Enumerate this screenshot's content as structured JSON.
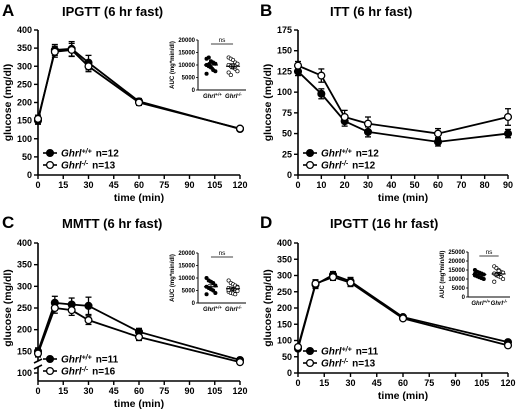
{
  "chart_data": [
    {
      "letter": "A",
      "type": "line",
      "title": "IPGTT (6 hr fast)",
      "xlabel": "time (min)",
      "ylabel": "glucose (mg/dl)",
      "x": [
        0,
        10,
        20,
        30,
        60,
        120
      ],
      "xticks": [
        0,
        15,
        30,
        45,
        60,
        75,
        90,
        105,
        120
      ],
      "xlim": [
        0,
        120
      ],
      "ylim": [
        0,
        400
      ],
      "yticks": [
        0,
        50,
        100,
        150,
        200,
        250,
        300,
        350,
        400
      ],
      "series": [
        {
          "name": "Ghrl+/+",
          "n": "n=12",
          "filled": true,
          "values": [
            150,
            345,
            348,
            310,
            203,
            127
          ],
          "err": [
            10,
            15,
            20,
            20,
            8,
            5
          ]
        },
        {
          "name": "Ghrl-/-",
          "n": "n=13",
          "filled": false,
          "values": [
            155,
            340,
            345,
            300,
            200,
            128
          ],
          "err": [
            10,
            15,
            18,
            15,
            8,
            5
          ]
        }
      ],
      "inset": {
        "ylabel": "AUC (mg*min/dl)",
        "yticks": [
          0,
          5000,
          10000,
          15000,
          20000
        ],
        "ylim": [
          0,
          20000
        ],
        "categories": [
          "Ghrl+/+",
          "Ghrl-/-"
        ],
        "means": [
          10000,
          9500
        ],
        "sem": [
          1000,
          1000
        ],
        "sig": "ns",
        "points": [
          [
            12500,
            13000,
            11500,
            11000,
            10500,
            10000,
            9500,
            9000,
            8000,
            7500,
            6500,
            10200
          ],
          [
            13000,
            12500,
            12000,
            11000,
            10500,
            10000,
            9500,
            9000,
            8500,
            7500,
            7000,
            6000,
            9800
          ]
        ]
      }
    },
    {
      "letter": "B",
      "type": "line",
      "title": "ITT  (6 hr fast)",
      "xlabel": "time (min)",
      "ylabel": "glucose (mg/dl)",
      "x": [
        0,
        10,
        20,
        30,
        60,
        90
      ],
      "xticks": [
        0,
        10,
        20,
        30,
        40,
        50,
        60,
        70,
        80,
        90
      ],
      "xlim": [
        0,
        90
      ],
      "ylim": [
        0,
        175
      ],
      "yticks": [
        0,
        25,
        50,
        75,
        100,
        125,
        150,
        175
      ],
      "series": [
        {
          "name": "Ghrl+/+",
          "n": "n=12",
          "filled": true,
          "values": [
            125,
            98,
            65,
            52,
            40,
            50
          ],
          "err": [
            5,
            6,
            6,
            6,
            5,
            5
          ]
        },
        {
          "name": "Ghrl-/-",
          "n": "n=12",
          "filled": false,
          "values": [
            132,
            120,
            70,
            62,
            50,
            70
          ],
          "err": [
            5,
            8,
            8,
            8,
            6,
            10
          ]
        }
      ]
    },
    {
      "letter": "C",
      "type": "line",
      "title": "MMTT (6 hr fast)",
      "xlabel": "time (min)",
      "ylabel": "glucose (mg/dl)",
      "x": [
        0,
        10,
        20,
        30,
        60,
        120
      ],
      "xticks": [
        0,
        15,
        30,
        45,
        60,
        75,
        90,
        105,
        120
      ],
      "xlim": [
        0,
        120
      ],
      "ylim": [
        100,
        400
      ],
      "yticks": [
        100,
        150,
        200,
        250,
        300,
        350,
        400
      ],
      "yaxis_break": true,
      "series": [
        {
          "name": "Ghrl+/+",
          "n": "n=11",
          "filled": true,
          "values": [
            150,
            262,
            258,
            255,
            195,
            130
          ],
          "err": [
            8,
            15,
            15,
            20,
            8,
            5
          ]
        },
        {
          "name": "Ghrl-/-",
          "n": "n=16",
          "filled": false,
          "values": [
            145,
            250,
            245,
            222,
            183,
            125
          ],
          "err": [
            8,
            12,
            12,
            10,
            8,
            5
          ]
        }
      ],
      "inset": {
        "ylabel": "AUC (mg*min/dl)",
        "yticks": [
          0,
          5000,
          10000,
          15000,
          20000
        ],
        "ylim": [
          0,
          20000
        ],
        "categories": [
          "Ghrl+/+",
          "Ghrl-/-"
        ],
        "means": [
          6500,
          5700
        ],
        "sem": [
          800,
          600
        ],
        "sig": "ns",
        "points": [
          [
            10000,
            9000,
            8500,
            8000,
            7000,
            6500,
            6000,
            5500,
            5000,
            4000,
            3500
          ],
          [
            9000,
            8000,
            7500,
            7000,
            6500,
            6000,
            5800,
            5500,
            5000,
            4800,
            4500,
            4000,
            3800,
            3500,
            6200,
            5200
          ]
        ]
      }
    },
    {
      "letter": "D",
      "type": "line",
      "title": "IPGTT (16 hr fast)",
      "xlabel": "time (min)",
      "ylabel": "glucose (mg/dl)",
      "x": [
        0,
        10,
        20,
        30,
        60,
        120
      ],
      "xticks": [
        0,
        15,
        30,
        45,
        60,
        75,
        90,
        105,
        120
      ],
      "xlim": [
        0,
        120
      ],
      "ylim": [
        0,
        400
      ],
      "yticks": [
        0,
        50,
        100,
        150,
        200,
        250,
        300,
        350,
        400
      ],
      "series": [
        {
          "name": "Ghrl+/+",
          "n": "n=11",
          "filled": true,
          "values": [
            75,
            272,
            302,
            282,
            172,
            95
          ],
          "err": [
            5,
            12,
            10,
            12,
            6,
            4
          ]
        },
        {
          "name": "Ghrl-/-",
          "n": "n=13",
          "filled": false,
          "values": [
            80,
            275,
            295,
            278,
            168,
            85
          ],
          "err": [
            5,
            12,
            10,
            12,
            6,
            4
          ]
        }
      ],
      "inset": {
        "ylabel": "AUC (mg*min/dl)",
        "yticks": [
          0,
          5000,
          10000,
          15000,
          20000,
          25000
        ],
        "ylim": [
          0,
          25000
        ],
        "categories": [
          "Ghrl+/+",
          "Ghrl-/-"
        ],
        "means": [
          12500,
          12800
        ],
        "sem": [
          800,
          900
        ],
        "sig": "ns",
        "points": [
          [
            15000,
            14000,
            13500,
            13000,
            12500,
            12000,
            11500,
            11000,
            10500,
            10000,
            12800
          ],
          [
            17000,
            16000,
            15000,
            14000,
            13500,
            13000,
            12000,
            11500,
            11000,
            10000,
            8500,
            12500,
            14500
          ]
        ]
      }
    }
  ]
}
